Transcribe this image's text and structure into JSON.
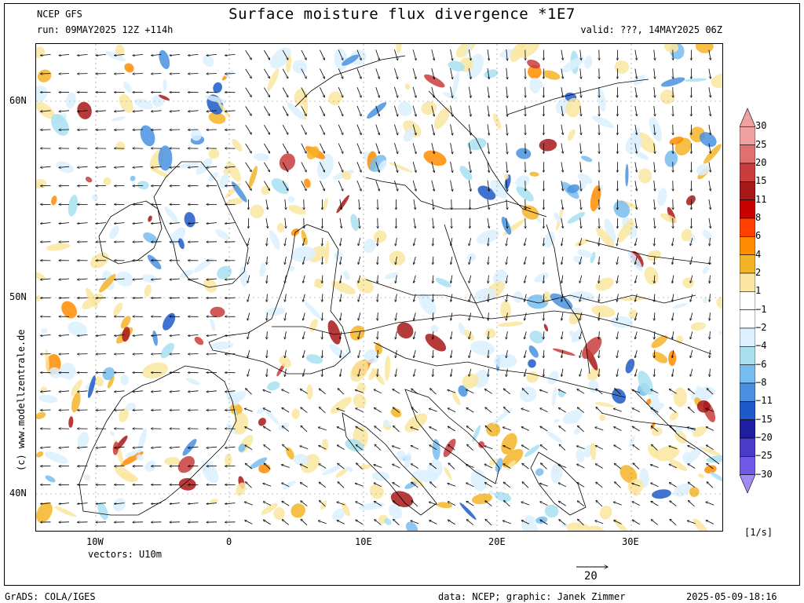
{
  "header": {
    "model": "NCEP GFS",
    "run": "run: 09MAY2025 12Z +114h",
    "title": "Surface moisture flux divergence *1E7",
    "valid": "valid: ???, 14MAY2025 06Z"
  },
  "axes": {
    "lat_ticks": [
      "60N",
      "50N",
      "40N"
    ],
    "lon_ticks": [
      "10W",
      "0",
      "10E",
      "20E",
      "30E"
    ]
  },
  "legend": {
    "levels": [
      "30",
      "25",
      "20",
      "15",
      "11",
      "8",
      "6",
      "4",
      "2",
      "1",
      "-1",
      "-2",
      "-4",
      "-6",
      "-8",
      "-11",
      "-15",
      "-20",
      "-25",
      "-30"
    ],
    "colors": [
      "#f0a0a0",
      "#e07070",
      "#c83c3c",
      "#a81818",
      "#c80000",
      "#ff4000",
      "#ff8c00",
      "#f5b428",
      "#fae6a0",
      "#ffffff",
      "#ffffff",
      "#dcf0ff",
      "#a8e0f0",
      "#78bdf0",
      "#4a90e0",
      "#1e5ac8",
      "#1e1ea0",
      "#4a3cc8",
      "#6e5ae6",
      "#a08cf0"
    ],
    "unit": "[1/s]"
  },
  "vector_info": {
    "label": "vectors: U10m",
    "reference": "20"
  },
  "credits": {
    "grads": "GrADS: COLA/IGES",
    "source": "data: NCEP; graphic: Janek Zimmer",
    "timestamp": "2025-05-09-18:16",
    "website": "(c) www.modellzentrale.de"
  }
}
